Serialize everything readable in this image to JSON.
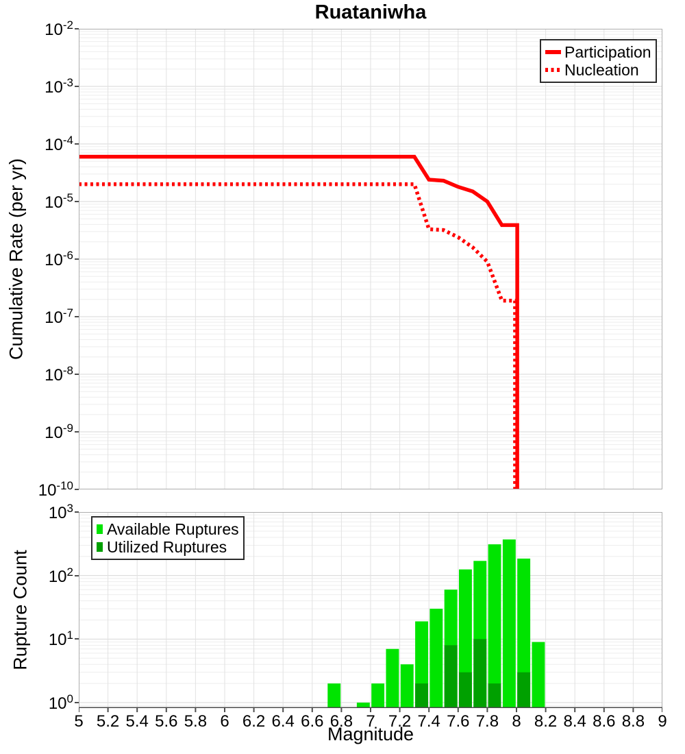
{
  "chart_data": [
    {
      "type": "line",
      "title": "Ruataniwha",
      "xlabel": "Magnitude",
      "ylabel": "Cumulative Rate (per yr)",
      "xlim": [
        5,
        9
      ],
      "ylim_log10": [
        -10,
        -2
      ],
      "grid": true,
      "legend_position": "top-right",
      "x_ticks": [
        "5",
        "5.2",
        "5.4",
        "5.6",
        "5.8",
        "6",
        "6.2",
        "6.4",
        "6.6",
        "6.8",
        "7",
        "7.2",
        "7.4",
        "7.6",
        "7.8",
        "8",
        "8.2",
        "8.4",
        "8.6",
        "8.8",
        "9"
      ],
      "y_tick_exponents": [
        "-2",
        "-3",
        "-4",
        "-5",
        "-6",
        "-7",
        "-8",
        "-9",
        "-10"
      ],
      "series": [
        {
          "name": "Participation",
          "line_style": "solid",
          "color": "#ff0000",
          "points": [
            [
              5.0,
              6e-05
            ],
            [
              7.3,
              6e-05
            ],
            [
              7.4,
              2.4e-05
            ],
            [
              7.5,
              2.3e-05
            ],
            [
              7.6,
              1.8e-05
            ],
            [
              7.7,
              1.5e-05
            ],
            [
              7.8,
              1e-05
            ],
            [
              7.9,
              3.9e-06
            ],
            [
              8.005,
              3.9e-06
            ],
            [
              8.005,
              1e-10
            ]
          ]
        },
        {
          "name": "Nucleation",
          "line_style": "dotted",
          "color": "#ff0000",
          "points": [
            [
              5.0,
              2e-05
            ],
            [
              7.3,
              2e-05
            ],
            [
              7.4,
              3.3e-06
            ],
            [
              7.5,
              3.2e-06
            ],
            [
              7.6,
              2.4e-06
            ],
            [
              7.7,
              1.6e-06
            ],
            [
              7.8,
              9e-07
            ],
            [
              7.9,
              1.9e-07
            ],
            [
              7.99,
              1.9e-07
            ],
            [
              7.99,
              1e-10
            ]
          ]
        }
      ]
    },
    {
      "type": "bar",
      "xlabel": "Magnitude",
      "ylabel": "Rupture Count",
      "xlim": [
        5,
        9
      ],
      "ylim": [
        0.82,
        1000
      ],
      "bin_width": 0.1,
      "grid": true,
      "legend_position": "top-left",
      "y_tick_exponents": [
        "3",
        "2",
        "1",
        "0"
      ],
      "series": [
        {
          "name": "Available Ruptures",
          "color": "#00e400",
          "bins": [
            [
              6.7,
              2
            ],
            [
              6.9,
              1
            ],
            [
              7.0,
              2
            ],
            [
              7.1,
              7
            ],
            [
              7.2,
              4
            ],
            [
              7.3,
              19
            ],
            [
              7.4,
              30
            ],
            [
              7.5,
              60
            ],
            [
              7.6,
              125
            ],
            [
              7.7,
              170
            ],
            [
              7.8,
              310
            ],
            [
              7.9,
              370
            ],
            [
              8.0,
              185
            ],
            [
              8.1,
              9
            ]
          ]
        },
        {
          "name": "Utilized Ruptures",
          "color": "#00a000",
          "bins": [
            [
              7.3,
              2
            ],
            [
              7.5,
              8
            ],
            [
              7.6,
              3
            ],
            [
              7.7,
              10
            ],
            [
              7.8,
              2
            ],
            [
              8.0,
              3
            ]
          ]
        }
      ]
    }
  ],
  "style": {
    "grid_minor": "#ededed",
    "grid_major": "#d7d7d7",
    "grid_vertical": "#e2e2e2",
    "plot_border": "#adadad",
    "axis_line": "#4d4d4d"
  }
}
